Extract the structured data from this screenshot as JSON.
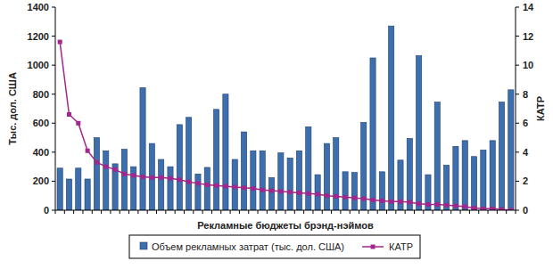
{
  "chart_data": {
    "type": "bar",
    "x_label": "Рекламные бюджеты брэнд-нэймов",
    "y_label": "Тыс. дол. США",
    "y2_label": "КАТР",
    "categories": [
      null,
      null,
      null,
      null,
      null,
      null,
      null,
      null,
      null,
      null,
      null,
      null,
      null,
      null,
      null,
      null,
      null,
      null,
      null,
      null,
      null,
      null,
      null,
      null,
      null,
      null,
      null,
      null,
      null,
      null,
      null,
      null,
      null,
      null,
      null,
      null,
      null,
      null,
      null,
      null,
      null,
      null,
      null,
      null,
      null,
      null,
      null,
      null,
      null,
      null
    ],
    "series": [
      {
        "name": "Объем рекламных затрат (тыс. дол. США)",
        "type": "bar",
        "color": "#3d6fae",
        "values": [
          290,
          215,
          290,
          215,
          500,
          410,
          320,
          420,
          300,
          845,
          460,
          350,
          300,
          590,
          640,
          250,
          295,
          695,
          800,
          350,
          540,
          410,
          410,
          225,
          395,
          360,
          410,
          575,
          245,
          460,
          500,
          265,
          260,
          605,
          1050,
          265,
          1270,
          345,
          495,
          1065,
          245,
          745,
          310,
          440,
          480,
          370,
          415,
          480,
          745,
          830
        ]
      },
      {
        "name": "КАТР",
        "type": "line",
        "axis": "y2",
        "color": "#a3268c",
        "marker": "square",
        "values": [
          11.6,
          6.6,
          6.0,
          4.1,
          3.3,
          3.0,
          2.8,
          2.5,
          2.4,
          2.3,
          2.25,
          2.25,
          2.2,
          2.1,
          1.95,
          1.85,
          1.75,
          1.7,
          1.65,
          1.6,
          1.55,
          1.5,
          1.4,
          1.35,
          1.3,
          1.25,
          1.2,
          1.15,
          1.1,
          1.0,
          0.95,
          0.9,
          0.85,
          0.8,
          0.7,
          0.65,
          0.6,
          0.6,
          0.55,
          0.45,
          0.4,
          0.4,
          0.35,
          0.3,
          0.25,
          0.15,
          0.1,
          0.1,
          0.05,
          0.0
        ]
      }
    ],
    "ylim": [
      0,
      1400
    ],
    "yticks": [
      0,
      200,
      400,
      600,
      800,
      1000,
      1200,
      1400
    ],
    "y2lim": [
      0,
      14
    ],
    "y2ticks": [
      0,
      2,
      4,
      6,
      8,
      10,
      12,
      14
    ],
    "legend": "bottom"
  }
}
